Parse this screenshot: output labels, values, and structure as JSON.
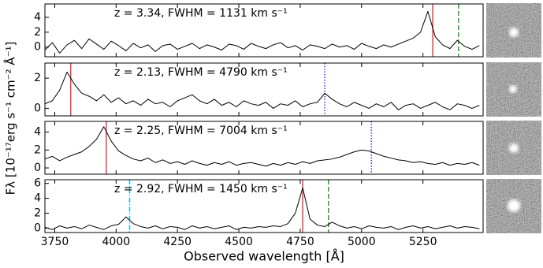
{
  "xlabel": "Observed wavelength [Å]",
  "ylabel": "Fλ [10⁻¹⁷erg s⁻¹ cm⁻² Å⁻¹]",
  "chart_data": [
    {
      "type": "line",
      "annotation": "z = 3.34, FWHM = 1131 km s⁻¹",
      "color": "#000000",
      "x": [
        3710,
        3740,
        3770,
        3800,
        3830,
        3860,
        3890,
        3920,
        3950,
        3980,
        4010,
        4040,
        4070,
        4100,
        4130,
        4160,
        4190,
        4220,
        4250,
        4280,
        4310,
        4340,
        4370,
        4400,
        4430,
        4460,
        4490,
        4520,
        4550,
        4580,
        4610,
        4640,
        4670,
        4700,
        4730,
        4760,
        4790,
        4820,
        4850,
        4880,
        4910,
        4940,
        4970,
        5000,
        5030,
        5060,
        5090,
        5120,
        5150,
        5180,
        5210,
        5240,
        5270,
        5300,
        5330,
        5360,
        5390,
        5420,
        5450,
        5480
      ],
      "values": [
        -0.4,
        0.6,
        -0.8,
        0.3,
        0.9,
        -0.2,
        1.1,
        0.4,
        -0.3,
        0.8,
        0.2,
        -0.5,
        0.5,
        -0.1,
        0.3,
        -0.6,
        0.2,
        0.4,
        -0.3,
        0.1,
        0.5,
        -0.2,
        0.3,
        0,
        -0.4,
        0.4,
        0.2,
        -0.3,
        0.5,
        0.1,
        -0.2,
        0.3,
        0.6,
        -0.1,
        0.2,
        -0.4,
        0.3,
        0.1,
        -0.2,
        0.4,
        0,
        0.2,
        -0.3,
        0.5,
        0.1,
        -0.2,
        0.3,
        0,
        0.4,
        0.8,
        1.2,
        2.0,
        4.8,
        1.4,
        0.3,
        -0.2,
        0.9,
        0.1,
        -0.3,
        0.2
      ],
      "xlim": [
        3710,
        5495
      ],
      "ylim": [
        -1.3,
        5.8
      ],
      "yticks": [
        0,
        2,
        4
      ],
      "lines": [
        {
          "x": 5290,
          "color": "#e8404a",
          "style": "solid"
        },
        {
          "x": 5395,
          "color": "#2ca02c",
          "style": "dashed"
        }
      ]
    },
    {
      "type": "line",
      "annotation": "z = 2.13, FWHM = 4790 km s⁻¹",
      "color": "#000000",
      "x": [
        3710,
        3740,
        3770,
        3800,
        3830,
        3860,
        3890,
        3920,
        3950,
        3980,
        4010,
        4040,
        4070,
        4100,
        4130,
        4160,
        4190,
        4220,
        4250,
        4280,
        4310,
        4340,
        4370,
        4400,
        4430,
        4460,
        4490,
        4520,
        4550,
        4580,
        4610,
        4640,
        4670,
        4700,
        4730,
        4760,
        4790,
        4820,
        4850,
        4880,
        4910,
        4940,
        4970,
        5000,
        5030,
        5060,
        5090,
        5120,
        5150,
        5180,
        5210,
        5240,
        5270,
        5300,
        5330,
        5360,
        5390,
        5420,
        5450,
        5480
      ],
      "values": [
        0.3,
        0.5,
        1.2,
        2.4,
        1.6,
        1.0,
        0.8,
        0.5,
        0.9,
        0.4,
        0.7,
        0.3,
        0.5,
        0.2,
        0.6,
        0.3,
        0.4,
        0.1,
        0.5,
        0.7,
        0.9,
        0.5,
        0.3,
        0.6,
        0.2,
        0.4,
        0.1,
        0.5,
        0.3,
        0.2,
        0.4,
        0,
        0.3,
        0.2,
        0.5,
        0.1,
        0.3,
        0.4,
        1.0,
        0.6,
        0.3,
        0.1,
        0.4,
        0.2,
        0,
        0.3,
        0.1,
        0.4,
        -0.1,
        0.2,
        0.3,
        0,
        0.2,
        0.4,
        0.1,
        -0.1,
        0.3,
        0.2,
        0,
        0.2
      ],
      "xlim": [
        3710,
        5495
      ],
      "ylim": [
        -0.5,
        3.0
      ],
      "yticks": [
        0,
        2
      ],
      "lines": [
        {
          "x": 3815,
          "color": "#e8404a",
          "style": "solid"
        },
        {
          "x": 4850,
          "color": "#3b3bd6",
          "style": "dotted"
        }
      ]
    },
    {
      "type": "line",
      "annotation": "z = 2.25, FWHM = 7004 km s⁻¹",
      "color": "#000000",
      "x": [
        3710,
        3740,
        3770,
        3800,
        3830,
        3860,
        3890,
        3920,
        3950,
        3980,
        4010,
        4040,
        4070,
        4100,
        4130,
        4160,
        4190,
        4220,
        4250,
        4280,
        4310,
        4340,
        4370,
        4400,
        4430,
        4460,
        4490,
        4520,
        4550,
        4580,
        4610,
        4640,
        4670,
        4700,
        4730,
        4760,
        4790,
        4820,
        4850,
        4880,
        4910,
        4940,
        4970,
        5000,
        5030,
        5060,
        5090,
        5120,
        5150,
        5180,
        5210,
        5240,
        5270,
        5300,
        5330,
        5360,
        5390,
        5420,
        5450,
        5480
      ],
      "values": [
        1.0,
        1.3,
        0.8,
        1.2,
        1.5,
        1.8,
        2.4,
        3.2,
        4.6,
        3.0,
        1.9,
        1.4,
        1.0,
        0.8,
        1.1,
        0.6,
        0.9,
        0.5,
        0.7,
        0.4,
        0.8,
        0.5,
        0.3,
        0.6,
        0.4,
        0.7,
        0.3,
        0.5,
        0.6,
        0.4,
        0.2,
        0.5,
        0.3,
        0.6,
        0.4,
        0.7,
        0.5,
        0.8,
        0.9,
        1.0,
        1.2,
        1.5,
        1.8,
        2.0,
        1.9,
        1.6,
        1.3,
        1.1,
        0.9,
        0.8,
        0.6,
        0.7,
        0.5,
        0.4,
        0.6,
        0.3,
        0.5,
        0.4,
        0.6,
        0.3
      ],
      "xlim": [
        3710,
        5495
      ],
      "ylim": [
        -0.7,
        5.2
      ],
      "yticks": [
        0,
        2,
        4
      ],
      "lines": [
        {
          "x": 3960,
          "color": "#e8404a",
          "style": "solid"
        },
        {
          "x": 5040,
          "color": "#3b3bd6",
          "style": "dotted"
        }
      ]
    },
    {
      "type": "line",
      "annotation": "z = 2.92, FWHM = 1450 km s⁻¹",
      "color": "#000000",
      "x": [
        3710,
        3740,
        3770,
        3800,
        3830,
        3860,
        3890,
        3920,
        3950,
        3980,
        4010,
        4040,
        4070,
        4100,
        4130,
        4160,
        4190,
        4220,
        4250,
        4280,
        4310,
        4340,
        4370,
        4400,
        4430,
        4460,
        4490,
        4520,
        4550,
        4580,
        4610,
        4640,
        4670,
        4700,
        4730,
        4760,
        4790,
        4820,
        4850,
        4880,
        4910,
        4940,
        4970,
        5000,
        5030,
        5060,
        5090,
        5120,
        5150,
        5180,
        5210,
        5240,
        5270,
        5300,
        5330,
        5360,
        5390,
        5420,
        5450,
        5480
      ],
      "values": [
        0.1,
        -0.2,
        0.3,
        0,
        0.2,
        -0.1,
        0.4,
        0.1,
        -0.2,
        0.3,
        0.5,
        1.5,
        0.6,
        0.2,
        0,
        0.3,
        -0.1,
        0.2,
        0.1,
        -0.2,
        0.3,
        0,
        0.2,
        -0.1,
        0.1,
        0.3,
        -0.2,
        0.1,
        0,
        0.2,
        0.1,
        0.3,
        0.2,
        0.6,
        2.0,
        5.4,
        1.2,
        0.4,
        0.2,
        0.8,
        0.3,
        0,
        0.2,
        -0.1,
        0.3,
        0.1,
        0,
        0.2,
        -0.2,
        0.1,
        0.3,
        0,
        0.2,
        -0.1,
        0.1,
        0.3,
        0,
        0.2,
        0.1,
        -0.1
      ],
      "xlim": [
        3710,
        5495
      ],
      "ylim": [
        -0.6,
        6.5
      ],
      "yticks": [
        0,
        2,
        4,
        6
      ],
      "xticks": [
        3750,
        4000,
        4250,
        4500,
        4750,
        5000,
        5250
      ],
      "lines": [
        {
          "x": 4055,
          "color": "#17becf",
          "style": "dashdot"
        },
        {
          "x": 4760,
          "color": "#e8404a",
          "style": "solid"
        },
        {
          "x": 4865,
          "color": "#2ca02c",
          "style": "dashed"
        }
      ]
    }
  ]
}
